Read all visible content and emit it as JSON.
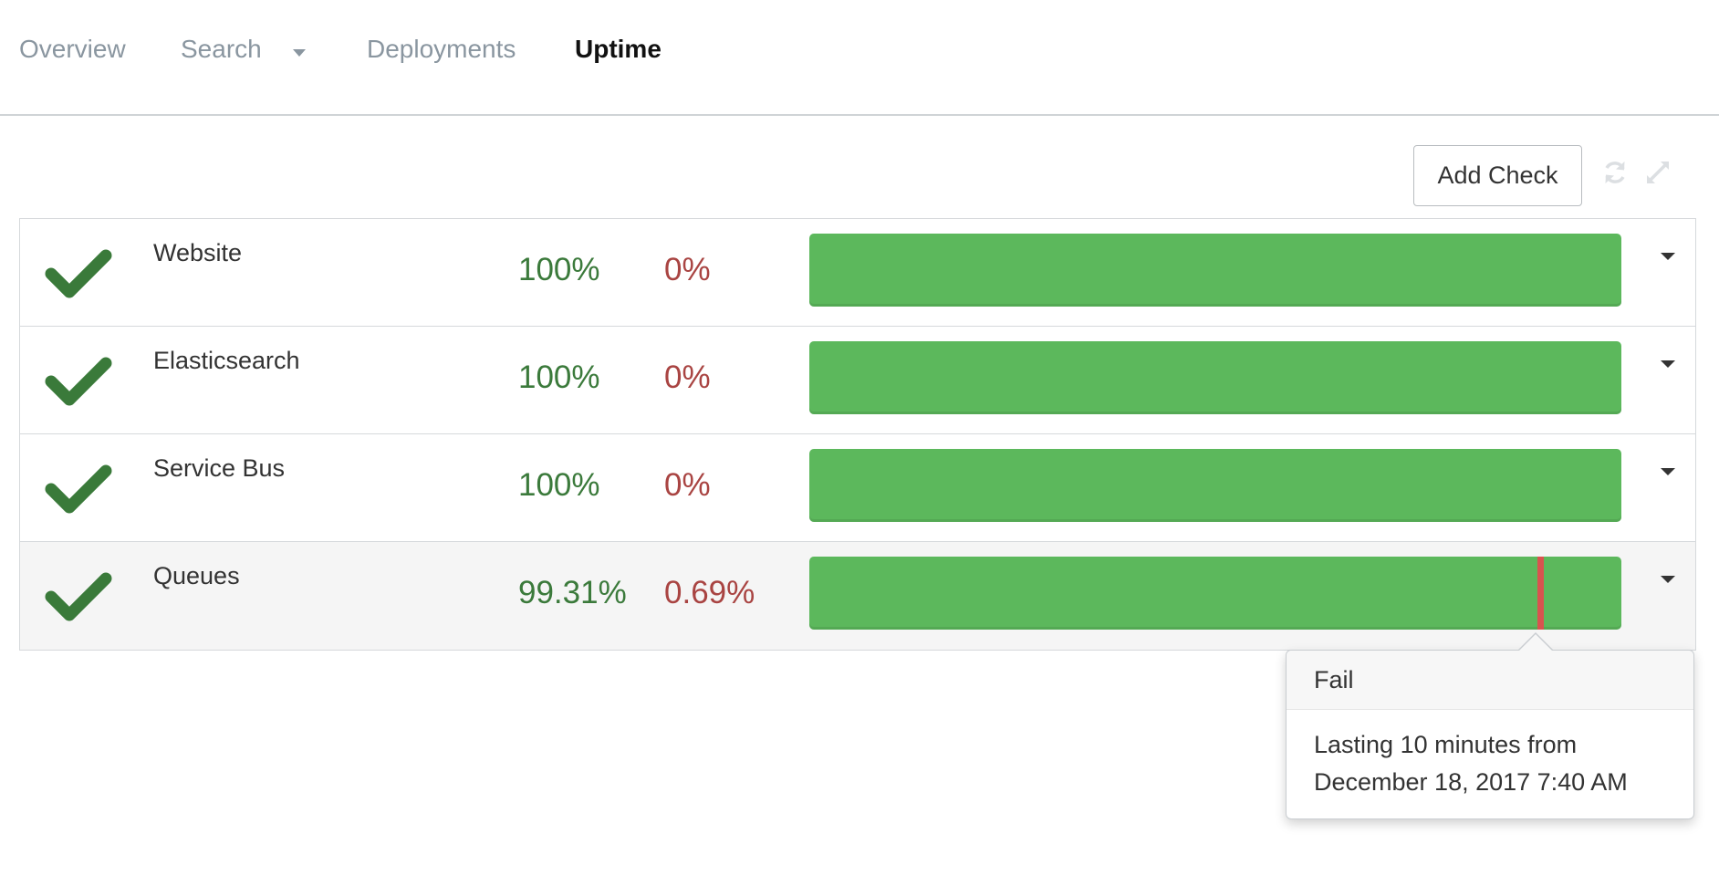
{
  "nav": {
    "items": [
      {
        "label": "Overview",
        "active": false
      },
      {
        "label": "Search",
        "active": false,
        "has_dropdown": true
      },
      {
        "label": "Deployments",
        "active": false
      },
      {
        "label": "Uptime",
        "active": true
      }
    ]
  },
  "toolbar": {
    "add_check_label": "Add Check",
    "refresh_icon": "refresh-icon",
    "expand_icon": "expand-icon"
  },
  "checks": [
    {
      "name": "Website",
      "up": "100%",
      "down": "0%",
      "status": "ok",
      "uptime_fraction": 1.0
    },
    {
      "name": "Elasticsearch",
      "up": "100%",
      "down": "0%",
      "status": "ok",
      "uptime_fraction": 1.0
    },
    {
      "name": "Service Bus",
      "up": "100%",
      "down": "0%",
      "status": "ok",
      "uptime_fraction": 1.0
    },
    {
      "name": "Queues",
      "up": "99.31%",
      "down": "0.69%",
      "status": "ok",
      "uptime_fraction": 0.9931,
      "fail_marker_position": 0.897,
      "highlighted": true
    }
  ],
  "popover": {
    "title": "Fail",
    "line1": "Lasting 10 minutes from",
    "line2": "December 18, 2017 7:40 AM"
  },
  "colors": {
    "up_text": "#3b7a3b",
    "down_text": "#a94442",
    "bar_ok": "#5cb85c",
    "bar_fail": "#d9534f",
    "check_icon": "#3a7a3a"
  }
}
